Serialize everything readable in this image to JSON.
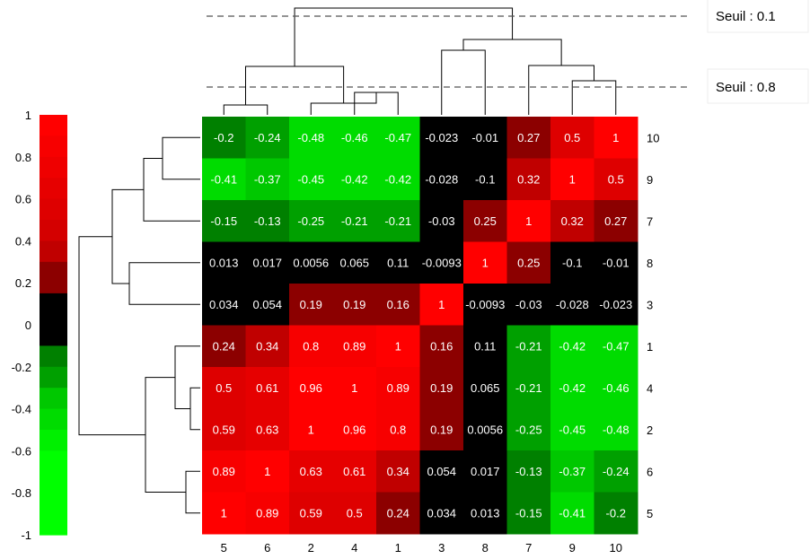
{
  "chart_data": {
    "type": "heatmap",
    "row_labels": [
      "10",
      "9",
      "7",
      "8",
      "3",
      "1",
      "4",
      "2",
      "6",
      "5"
    ],
    "col_labels": [
      "5",
      "6",
      "2",
      "4",
      "1",
      "3",
      "8",
      "7",
      "9",
      "10"
    ],
    "values": [
      [
        -0.2,
        -0.24,
        -0.48,
        -0.46,
        -0.47,
        -0.023,
        -0.01,
        0.27,
        0.5,
        1
      ],
      [
        -0.41,
        -0.37,
        -0.45,
        -0.42,
        -0.42,
        -0.028,
        -0.1,
        0.32,
        1,
        0.5
      ],
      [
        -0.15,
        -0.13,
        -0.25,
        -0.21,
        -0.21,
        -0.03,
        0.25,
        1,
        0.32,
        0.27
      ],
      [
        0.013,
        0.017,
        0.0056,
        0.065,
        0.11,
        -0.0093,
        1,
        0.25,
        -0.1,
        -0.01
      ],
      [
        0.034,
        0.054,
        0.19,
        0.19,
        0.16,
        1,
        -0.0093,
        -0.03,
        -0.028,
        -0.023
      ],
      [
        0.24,
        0.34,
        0.8,
        0.89,
        1,
        0.16,
        0.11,
        -0.21,
        -0.42,
        -0.47
      ],
      [
        0.5,
        0.61,
        0.96,
        1,
        0.89,
        0.19,
        0.065,
        -0.21,
        -0.42,
        -0.46
      ],
      [
        0.59,
        0.63,
        1,
        0.96,
        0.8,
        0.19,
        0.0056,
        -0.25,
        -0.45,
        -0.48
      ],
      [
        0.89,
        1,
        0.63,
        0.61,
        0.34,
        0.054,
        0.017,
        -0.13,
        -0.37,
        -0.24
      ],
      [
        1,
        0.89,
        0.59,
        0.5,
        0.24,
        0.034,
        0.013,
        -0.15,
        -0.41,
        -0.2
      ]
    ],
    "cell_labels": [
      [
        "-0.2",
        "-0.24",
        "-0.48",
        "-0.46",
        "-0.47",
        "-0.023",
        "-0.01",
        "0.27",
        "0.5",
        "1"
      ],
      [
        "-0.41",
        "-0.37",
        "-0.45",
        "-0.42",
        "-0.42",
        "-0.028",
        "-0.1",
        "0.32",
        "1",
        "0.5"
      ],
      [
        "-0.15",
        "-0.13",
        "-0.25",
        "-0.21",
        "-0.21",
        "-0.03",
        "0.25",
        "1",
        "0.32",
        "0.27"
      ],
      [
        "0.013",
        "0.017",
        "0.0056",
        "0.065",
        "0.11",
        "-0.0093",
        "1",
        "0.25",
        "-0.1",
        "-0.01"
      ],
      [
        "0.034",
        "0.054",
        "0.19",
        "0.19",
        "0.16",
        "1",
        "-0.0093",
        "-0.03",
        "-0.028",
        "-0.023"
      ],
      [
        "0.24",
        "0.34",
        "0.8",
        "0.89",
        "1",
        "0.16",
        "0.11",
        "-0.21",
        "-0.42",
        "-0.47"
      ],
      [
        "0.5",
        "0.61",
        "0.96",
        "1",
        "0.89",
        "0.19",
        "0.065",
        "-0.21",
        "-0.42",
        "-0.46"
      ],
      [
        "0.59",
        "0.63",
        "1",
        "0.96",
        "0.8",
        "0.19",
        "0.0056",
        "-0.25",
        "-0.45",
        "-0.48"
      ],
      [
        "0.89",
        "1",
        "0.63",
        "0.61",
        "0.34",
        "0.054",
        "0.017",
        "-0.13",
        "-0.37",
        "-0.24"
      ],
      [
        "1",
        "0.89",
        "0.59",
        "0.5",
        "0.24",
        "0.034",
        "0.013",
        "-0.15",
        "-0.41",
        "-0.2"
      ]
    ],
    "color_scale": {
      "range": [
        -1,
        1
      ],
      "tick_labels": [
        "1",
        "0.8",
        "0.6",
        "0.4",
        "0.2",
        "0",
        "-0.2",
        "-0.4",
        "-0.6",
        "-0.8",
        "-1"
      ],
      "bins": [
        {
          "range": [
            0.9,
            1.0
          ],
          "color": "#ff0000"
        },
        {
          "range": [
            0.8,
            0.9
          ],
          "color": "#f70000"
        },
        {
          "range": [
            0.7,
            0.8
          ],
          "color": "#ef0000"
        },
        {
          "range": [
            0.6,
            0.7
          ],
          "color": "#e60000"
        },
        {
          "range": [
            0.5,
            0.6
          ],
          "color": "#de0000"
        },
        {
          "range": [
            0.4,
            0.5
          ],
          "color": "#d40000"
        },
        {
          "range": [
            0.3,
            0.4
          ],
          "color": "#c00000"
        },
        {
          "range": [
            0.15,
            0.3
          ],
          "color": "#8c0000"
        },
        {
          "range": [
            -0.1,
            0.15
          ],
          "color": "#000000"
        },
        {
          "range": [
            -0.2,
            -0.1
          ],
          "color": "#008000"
        },
        {
          "range": [
            -0.3,
            -0.2
          ],
          "color": "#00a000"
        },
        {
          "range": [
            -0.4,
            -0.3
          ],
          "color": "#00c800"
        },
        {
          "range": [
            -0.5,
            -0.4
          ],
          "color": "#00dc00"
        },
        {
          "range": [
            -0.6,
            -0.5
          ],
          "color": "#00f000"
        },
        {
          "range": [
            -1.0,
            -0.6
          ],
          "color": "#00ff00"
        }
      ]
    },
    "thresholds": [
      {
        "label": "Seuil : 0.1"
      },
      {
        "label": "Seuil : 0.8"
      }
    ]
  }
}
